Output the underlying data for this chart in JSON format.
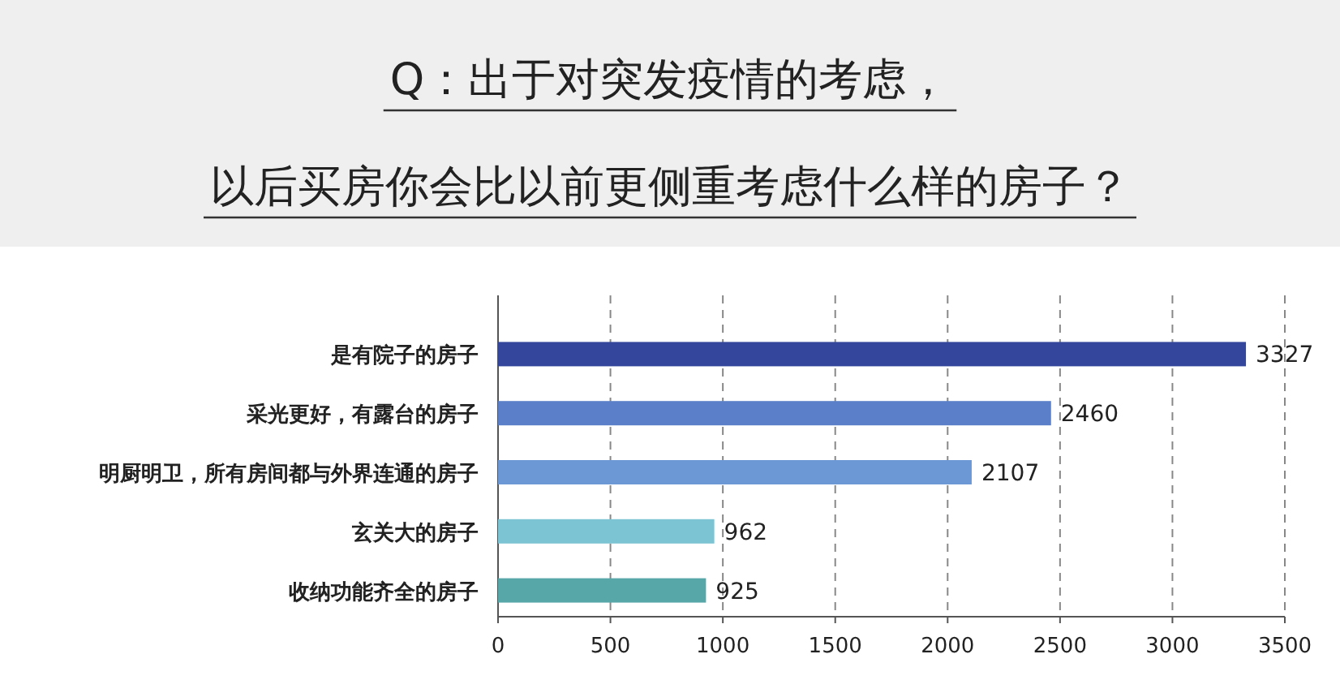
{
  "chart_data": {
    "type": "bar",
    "orientation": "horizontal",
    "title": "Q：出于对突发疫情的考虑，",
    "subtitle": "以后买房你会比以前更侧重考虑什么样的房子？",
    "categories": [
      "是有院子的房子",
      "采光更好，有露台的房子",
      "明厨明卫，所有房间都与外界连通的房子",
      "玄关大的房子",
      "收纳功能齐全的房子"
    ],
    "values": [
      3327,
      2460,
      2107,
      962,
      925
    ],
    "colors": [
      "#34469b",
      "#5b80c9",
      "#6d98d6",
      "#7cc3d3",
      "#57a6a8"
    ],
    "xlim": [
      0,
      3500
    ],
    "xticks": [
      0,
      500,
      1000,
      1500,
      2000,
      2500,
      3000,
      3500
    ],
    "grid": "x",
    "data_labels": true
  }
}
